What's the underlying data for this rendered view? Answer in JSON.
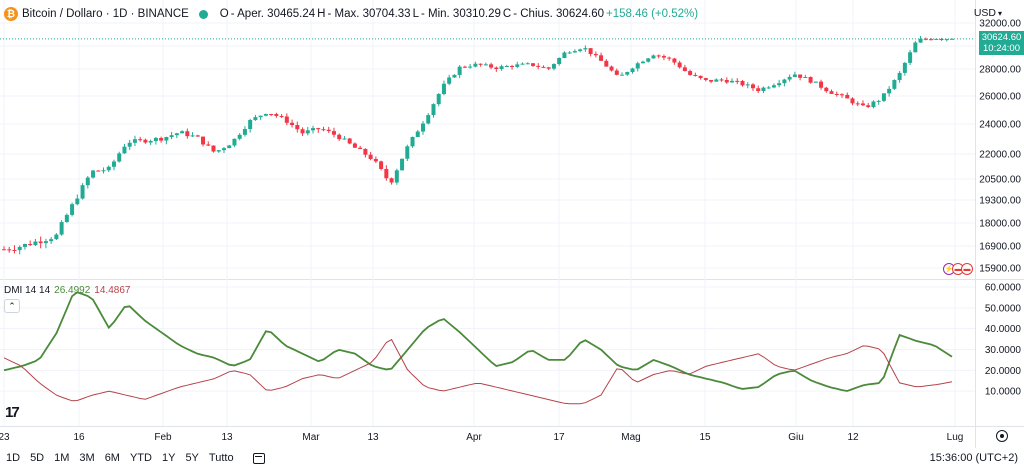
{
  "header": {
    "coin_glyph": "₿",
    "symbol": "Bitcoin / Dollaro · 1D · BINANCE",
    "open_label": "O",
    "open_value": "- Aper. 30465.24",
    "high_label": "H",
    "high_value": "- Max. 30704.33",
    "low_label": "L",
    "low_value": "- Min. 30310.29",
    "close_label": "C",
    "close_value": "- Chius. 30624.60",
    "change": "+158.46 (+0.52%)",
    "status_color": "#22ab94"
  },
  "currency": {
    "label": "USD",
    "icon": "chevron-down-icon"
  },
  "price_axis": {
    "labels": [
      "32000.00",
      "30000.00",
      "28000.00",
      "26000.00",
      "24000.00",
      "22000.00",
      "20500.00",
      "19300.00",
      "18000.00",
      "16900.00",
      "15900.00"
    ],
    "last_price": "30624.60",
    "countdown": "10:24:00"
  },
  "dmi": {
    "title": "DMI 14 14",
    "plus_value": "26.4992",
    "minus_value": "14.4867",
    "axis_labels": [
      "60.0000",
      "50.0000",
      "40.0000",
      "30.0000",
      "20.0000",
      "10.0000"
    ]
  },
  "time_axis": [
    "23",
    "16",
    "Feb",
    "13",
    "Mar",
    "13",
    "Apr",
    "17",
    "Mag",
    "15",
    "Giu",
    "12",
    "Lug"
  ],
  "bottom_bar": {
    "ranges": [
      "1D",
      "5D",
      "1M",
      "3M",
      "6M",
      "YTD",
      "1Y",
      "5Y",
      "Tutto"
    ],
    "time": "15:36:00 (UTC+2)"
  },
  "colors": {
    "up": "#22ab94",
    "down": "#f23645",
    "plus_di": "#4a8a3a",
    "minus_di": "#b5434a"
  },
  "chart_data": {
    "type": "candlestick",
    "title": "Bitcoin / Dollaro · 1D · BINANCE",
    "close_anchors": [
      16750,
      16900,
      17150,
      17400,
      19200,
      20950,
      21100,
      22800,
      22900,
      23050,
      23450,
      23100,
      22100,
      22800,
      24200,
      24900,
      24300,
      23400,
      23700,
      23200,
      22400,
      21700,
      20250,
      22500,
      24400,
      26700,
      28200,
      28400,
      28100,
      28300,
      28400,
      28000,
      29500,
      29900,
      28700,
      27300,
      28400,
      29300,
      28800,
      27600,
      27100,
      27200,
      26900,
      26450,
      27000,
      27650,
      27100,
      26350,
      25800,
      25150,
      25850,
      27600,
      30500,
      30700,
      30624.6
    ],
    "price_ylim": [
      15900,
      32000
    ],
    "dmi": {
      "ylim": [
        0,
        60
      ],
      "series": [
        {
          "name": "+DI",
          "values": [
            20,
            22,
            25,
            38,
            58,
            55,
            40,
            52,
            44,
            38,
            32,
            28,
            26,
            22,
            25,
            40,
            32,
            28,
            24,
            30,
            28,
            22,
            20,
            30,
            40,
            45,
            38,
            30,
            22,
            24,
            30,
            25,
            25,
            35,
            30,
            22,
            20,
            25,
            22,
            18,
            16,
            14,
            11,
            12,
            18,
            20,
            15,
            12,
            10,
            13,
            14,
            37,
            34,
            32,
            26.5
          ]
        },
        {
          "name": "-DI",
          "values": [
            26,
            22,
            14,
            8,
            5,
            8,
            10,
            8,
            6,
            9,
            12,
            14,
            16,
            20,
            18,
            10,
            12,
            16,
            18,
            16,
            20,
            24,
            36,
            20,
            12,
            10,
            12,
            14,
            12,
            10,
            8,
            6,
            4,
            4,
            8,
            22,
            14,
            18,
            20,
            18,
            22,
            24,
            26,
            28,
            22,
            20,
            23,
            26,
            28,
            32,
            30,
            14,
            12,
            13,
            14.5
          ]
        }
      ]
    }
  }
}
